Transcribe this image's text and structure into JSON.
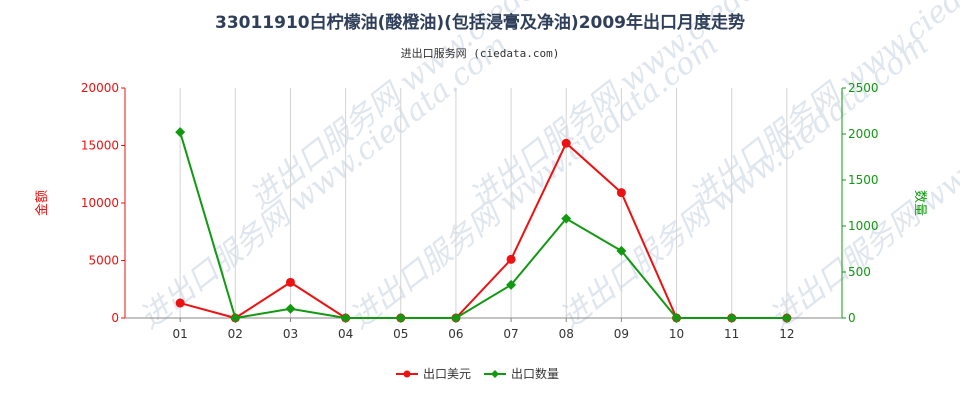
{
  "chart_data": {
    "type": "line",
    "title": "33011910白柠檬油(酸橙油)(包括浸膏及净油)2009年出口月度走势",
    "subtitle": "进出口服务网 (ciedata.com)",
    "watermark": "进出口服务网 www.ciedata.com",
    "categories": [
      "01",
      "02",
      "03",
      "04",
      "05",
      "06",
      "07",
      "08",
      "09",
      "10",
      "11",
      "12"
    ],
    "y_left": {
      "label": "金额",
      "min": 0,
      "max": 20000,
      "ticks": [
        "0",
        "5000",
        "10000",
        "15000",
        "20000"
      ],
      "color": "#ee1111"
    },
    "y_right": {
      "label": "数量",
      "min": 0,
      "max": 2500,
      "ticks": [
        "0",
        "500",
        "1000",
        "1500",
        "2000",
        "2500"
      ],
      "color": "#119911"
    },
    "grid": "vertical",
    "legend_position": "bottom-center",
    "series": [
      {
        "name": "出口美元",
        "axis": "left",
        "color": "#ee1111",
        "marker": "circle",
        "values": [
          1300,
          0,
          3100,
          0,
          0,
          0,
          5100,
          15200,
          10900,
          0,
          0,
          0
        ]
      },
      {
        "name": "出口数量",
        "axis": "right",
        "color": "#119911",
        "marker": "diamond",
        "values": [
          2020,
          0,
          100,
          0,
          0,
          0,
          360,
          1080,
          730,
          0,
          0,
          0
        ]
      }
    ]
  }
}
